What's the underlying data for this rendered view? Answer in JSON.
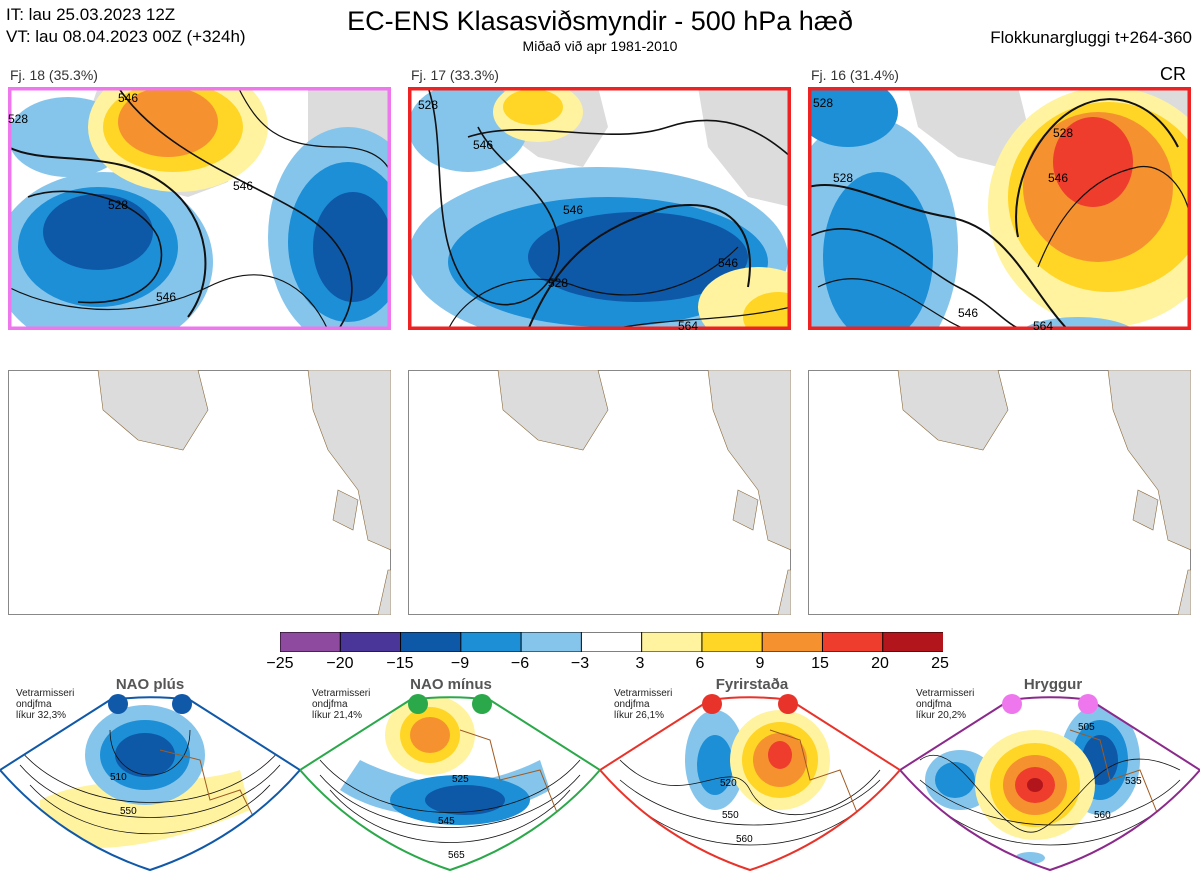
{
  "header": {
    "it_line": "IT: lau 25.03.2023 12Z",
    "vt_line": "VT: lau 08.04.2023 00Z  (+324h)",
    "title": "EC-ENS Klasasviðsmyndir - 500 hPa hæð",
    "subtitle": "Miðað við apr 1981-2010",
    "window": "Flokkunargluggi t+264-360",
    "corner": "CR"
  },
  "clusters": [
    {
      "label": "Fj. 18 (35.3%)",
      "border_color": "#ee77ee",
      "contours": [
        "546",
        "528",
        "546",
        "528",
        "546"
      ]
    },
    {
      "label": "Fj. 17 (33.3%)",
      "border_color": "#ee2222",
      "contours": [
        "528",
        "546",
        "546",
        "528",
        "546",
        "564"
      ]
    },
    {
      "label": "Fj. 16 (31.4%)",
      "border_color": "#ee2222",
      "contours": [
        "528",
        "528",
        "546",
        "528",
        "546",
        "564"
      ]
    }
  ],
  "colorbar": {
    "ticks": [
      "−25",
      "−20",
      "−15",
      "−9",
      "−6",
      "−3",
      "3",
      "6",
      "9",
      "15",
      "20",
      "25"
    ],
    "colors": [
      "#8e4a9e",
      "#4a3598",
      "#0e58a8",
      "#1d8fd6",
      "#86c5eb",
      "#ffffff",
      "#fff3a0",
      "#ffd526",
      "#f5922f",
      "#ee3d2d",
      "#b2161c"
    ]
  },
  "regimes": [
    {
      "name": "NAO plús",
      "meta": [
        "Vetrarmisseri",
        "ondjfma",
        "líkur 32,3%"
      ],
      "border_color": "#1058a8",
      "dot_color": "#1058a8",
      "contours": [
        "510",
        "550"
      ]
    },
    {
      "name": "NAO mínus",
      "meta": [
        "Vetrarmisseri",
        "ondjfma",
        "líkur 21,4%"
      ],
      "border_color": "#2aa84a",
      "dot_color": "#2aa84a",
      "contours": [
        "525",
        "545",
        "565"
      ]
    },
    {
      "name": "Fyrirstaða",
      "meta": [
        "Vetrarmisseri",
        "ondjfma",
        "líkur 26,1%"
      ],
      "border_color": "#e8332a",
      "dot_color": "#e8332a",
      "contours": [
        "520",
        "550",
        "560"
      ]
    },
    {
      "name": "Hryggur",
      "meta": [
        "Vetrarmisseri",
        "ondjfma",
        "líkur 20,2%"
      ],
      "border_color": "#8b2a8b",
      "dot_color": "#ee77ee",
      "contours": [
        "505",
        "535",
        "560"
      ]
    }
  ]
}
